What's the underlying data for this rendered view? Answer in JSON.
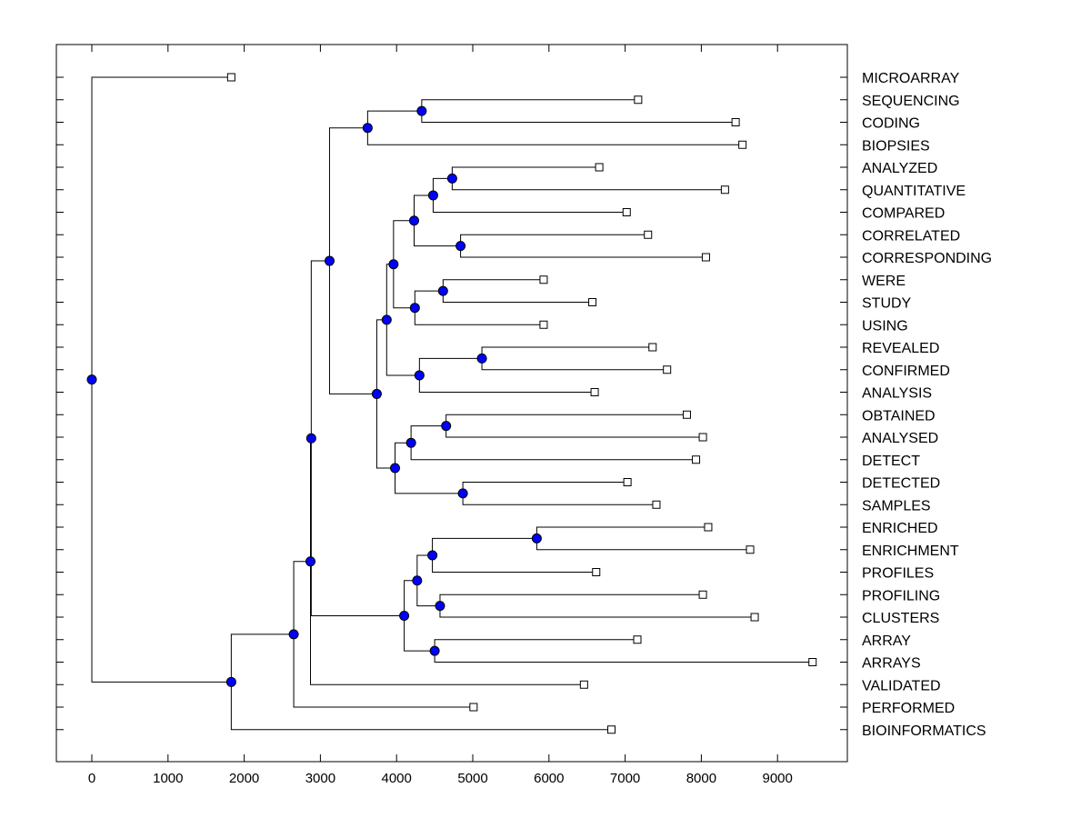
{
  "chart_data": {
    "type": "dendrogram",
    "xlim": [
      -450,
      9950
    ],
    "x_ticks": [
      0,
      1000,
      2000,
      3000,
      4000,
      5000,
      6000,
      7000,
      8000,
      9000
    ],
    "colors": {
      "node": "#0000ff",
      "leaf_fill": "#ffffff",
      "line": "#000000"
    },
    "leaves": [
      {
        "label": "MICROARRAY",
        "x": 1830
      },
      {
        "label": "SEQUENCING",
        "x": 7170
      },
      {
        "label": "CODING",
        "x": 8450
      },
      {
        "label": "BIOPSIES",
        "x": 8540
      },
      {
        "label": "ANALYZED",
        "x": 6660
      },
      {
        "label": "QUANTITATIVE",
        "x": 8310
      },
      {
        "label": "COMPARED",
        "x": 7020
      },
      {
        "label": "CORRELATED",
        "x": 7300
      },
      {
        "label": "CORRESPONDING",
        "x": 8060
      },
      {
        "label": "WERE",
        "x": 5930
      },
      {
        "label": "STUDY",
        "x": 6570
      },
      {
        "label": "USING",
        "x": 5930
      },
      {
        "label": "REVEALED",
        "x": 7360
      },
      {
        "label": "CONFIRMED",
        "x": 7550
      },
      {
        "label": "ANALYSIS",
        "x": 6600
      },
      {
        "label": "OBTAINED",
        "x": 7810
      },
      {
        "label": "ANALYSED",
        "x": 8020
      },
      {
        "label": "DETECT",
        "x": 7930
      },
      {
        "label": "DETECTED",
        "x": 7030
      },
      {
        "label": "SAMPLES",
        "x": 7410
      },
      {
        "label": "ENRICHED",
        "x": 8090
      },
      {
        "label": "ENRICHMENT",
        "x": 8640
      },
      {
        "label": "PROFILES",
        "x": 6620
      },
      {
        "label": "PROFILING",
        "x": 8020
      },
      {
        "label": "CLUSTERS",
        "x": 8700
      },
      {
        "label": "ARRAY",
        "x": 7160
      },
      {
        "label": "ARRAYS",
        "x": 9460
      },
      {
        "label": "VALIDATED",
        "x": 6460
      },
      {
        "label": "PERFORMED",
        "x": 5010
      },
      {
        "label": "BIOINFORMATICS",
        "x": 6820
      }
    ],
    "merges": [
      {
        "x": 4330,
        "children": [
          "L1",
          "L2"
        ]
      },
      {
        "x": 3620,
        "children": [
          "N0",
          "L3"
        ]
      },
      {
        "x": 4730,
        "children": [
          "L4",
          "L5"
        ]
      },
      {
        "x": 4480,
        "children": [
          "N2",
          "L6"
        ]
      },
      {
        "x": 4840,
        "children": [
          "L7",
          "L8"
        ]
      },
      {
        "x": 4230,
        "children": [
          "N3",
          "N4"
        ]
      },
      {
        "x": 4610,
        "children": [
          "L9",
          "L10"
        ]
      },
      {
        "x": 4240,
        "children": [
          "N6",
          "L11"
        ]
      },
      {
        "x": 3960,
        "children": [
          "N5",
          "N7"
        ]
      },
      {
        "x": 5120,
        "children": [
          "L12",
          "L13"
        ]
      },
      {
        "x": 4300,
        "children": [
          "N9",
          "L14"
        ]
      },
      {
        "x": 3870,
        "children": [
          "N8",
          "N10"
        ]
      },
      {
        "x": 4650,
        "children": [
          "L15",
          "L16"
        ]
      },
      {
        "x": 4190,
        "children": [
          "N12",
          "L17"
        ]
      },
      {
        "x": 4870,
        "children": [
          "L18",
          "L19"
        ]
      },
      {
        "x": 3980,
        "children": [
          "N13",
          "N14"
        ]
      },
      {
        "x": 3740,
        "children": [
          "N11",
          "N15"
        ]
      },
      {
        "x": 3120,
        "children": [
          "N1",
          "N16"
        ]
      },
      {
        "x": 5840,
        "children": [
          "L20",
          "L21"
        ]
      },
      {
        "x": 4470,
        "children": [
          "N18",
          "L22"
        ]
      },
      {
        "x": 4570,
        "children": [
          "L23",
          "L24"
        ]
      },
      {
        "x": 4270,
        "children": [
          "N19",
          "N20"
        ]
      },
      {
        "x": 4500,
        "children": [
          "L25",
          "L26"
        ]
      },
      {
        "x": 4100,
        "children": [
          "N21",
          "N22"
        ]
      },
      {
        "x": 2880,
        "children": [
          "N17",
          "N23"
        ]
      },
      {
        "x": 2870,
        "children": [
          "N24",
          "L27"
        ]
      },
      {
        "x": 2650,
        "children": [
          "N25",
          "L28"
        ]
      },
      {
        "x": 1830,
        "children": [
          "N26",
          "L29"
        ]
      },
      {
        "x": 0,
        "children": [
          "L0",
          "N27"
        ]
      }
    ]
  }
}
